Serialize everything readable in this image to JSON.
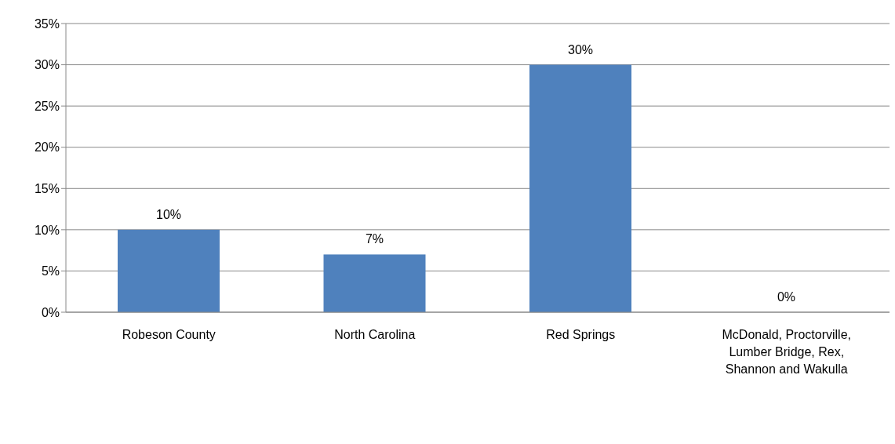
{
  "chart_data": {
    "type": "bar",
    "categories": [
      "Robeson County",
      "North Carolina",
      "Red Springs",
      "McDonald, Proctorville, Lumber Bridge, Rex, Shannon and Wakulla"
    ],
    "values": [
      10,
      7,
      30,
      0
    ],
    "value_labels": [
      "10%",
      "7%",
      "30%",
      "0%"
    ],
    "color": "#4f81bd",
    "ylim": [
      0,
      35
    ],
    "yticks": [
      {
        "value": 0,
        "label": "0%"
      },
      {
        "value": 5,
        "label": "5%"
      },
      {
        "value": 10,
        "label": "10%"
      },
      {
        "value": 15,
        "label": "15%"
      },
      {
        "value": 20,
        "label": "20%"
      },
      {
        "value": 25,
        "label": "25%"
      },
      {
        "value": 30,
        "label": "30%"
      },
      {
        "value": 35,
        "label": "35%"
      }
    ],
    "grid": "y"
  }
}
